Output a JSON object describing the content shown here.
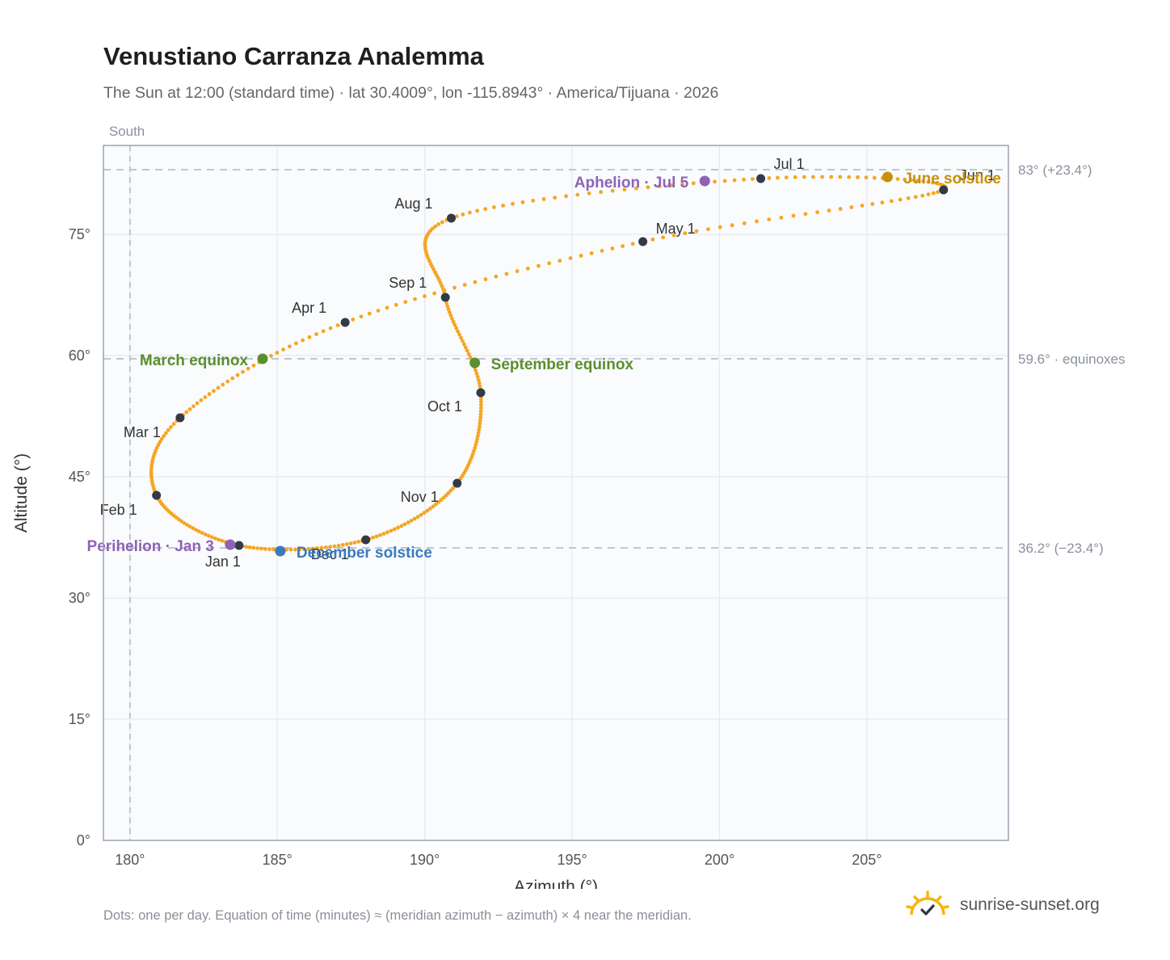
{
  "header": {
    "title": "Venustiano Carranza Analemma",
    "subtitle": "The Sun at 12:00 (standard time) · lat 30.4009°, lon -115.8943° · America/Tijuana · 2026"
  },
  "footer": {
    "note": "Dots: one per day. Equation of time (minutes) ≈ (meridian azimuth − azimuth) × 4 near the meridian.",
    "brand": "sunrise-sunset.org",
    "brand_icon": "sun-checkmark-icon"
  },
  "colors": {
    "path": "#f5a623",
    "month_marker": "#333a45",
    "equinox": "#5a8f2e",
    "june_solstice": "#c8900a",
    "december_solstice": "#3a7abf",
    "apsis": "#8e63b5",
    "grid": "#e6e9ee",
    "plot_bg": "#f9fbfd",
    "reference_line": "#b7c0cc"
  },
  "chart_data": {
    "type": "scatter",
    "xlabel": "Azimuth (°)",
    "ylabel": "Altitude (°)",
    "xlim": [
      179.1,
      209.8
    ],
    "ylim": [
      0,
      86
    ],
    "x_ticks": [
      180,
      185,
      190,
      195,
      200,
      205
    ],
    "x_tick_labels": [
      "180°",
      "185°",
      "190°",
      "195°",
      "200°",
      "205°"
    ],
    "y_ticks": [
      0,
      15,
      30,
      45,
      60,
      75
    ],
    "y_tick_labels": [
      "0°",
      "15°",
      "30°",
      "45°",
      "60°",
      "75°"
    ],
    "grid": true,
    "meridian": {
      "azimuth": 180,
      "label": "South"
    },
    "reference_lines": [
      {
        "altitude": 83.0,
        "label": "83° (+23.4°)"
      },
      {
        "altitude": 59.6,
        "label": "59.6° · equinoxes"
      },
      {
        "altitude": 36.2,
        "label": "36.2° (−23.4°)"
      }
    ],
    "month_markers": [
      {
        "label": "Jan 1",
        "azimuth": 183.7,
        "altitude": 36.5
      },
      {
        "label": "Feb 1",
        "azimuth": 180.9,
        "altitude": 42.7
      },
      {
        "label": "Mar 1",
        "azimuth": 181.7,
        "altitude": 52.3
      },
      {
        "label": "Apr 1",
        "azimuth": 187.3,
        "altitude": 64.1
      },
      {
        "label": "May 1",
        "azimuth": 197.4,
        "altitude": 74.1
      },
      {
        "label": "Jun 1",
        "azimuth": 207.6,
        "altitude": 80.5
      },
      {
        "label": "Jul 1",
        "azimuth": 201.4,
        "altitude": 81.9
      },
      {
        "label": "Aug 1",
        "azimuth": 190.9,
        "altitude": 77.0
      },
      {
        "label": "Sep 1",
        "azimuth": 190.7,
        "altitude": 67.2
      },
      {
        "label": "Oct 1",
        "azimuth": 191.9,
        "altitude": 55.4
      },
      {
        "label": "Nov 1",
        "azimuth": 191.1,
        "altitude": 44.2
      },
      {
        "label": "Dec 1",
        "azimuth": 188.0,
        "altitude": 37.2
      }
    ],
    "events": [
      {
        "label": "March equinox",
        "azimuth": 184.5,
        "altitude": 59.6,
        "kind": "equinox"
      },
      {
        "label": "June solstice",
        "azimuth": 205.7,
        "altitude": 82.1,
        "kind": "june_solstice"
      },
      {
        "label": "September equinox",
        "azimuth": 191.7,
        "altitude": 59.1,
        "kind": "equinox"
      },
      {
        "label": "December solstice",
        "azimuth": 185.1,
        "altitude": 35.8,
        "kind": "december_solstice"
      },
      {
        "label": "Perihelion · Jan 3",
        "azimuth": 183.4,
        "altitude": 36.6,
        "kind": "apsis"
      },
      {
        "label": "Aphelion · Jul 5",
        "azimuth": 199.5,
        "altitude": 81.6,
        "kind": "apsis"
      }
    ]
  }
}
